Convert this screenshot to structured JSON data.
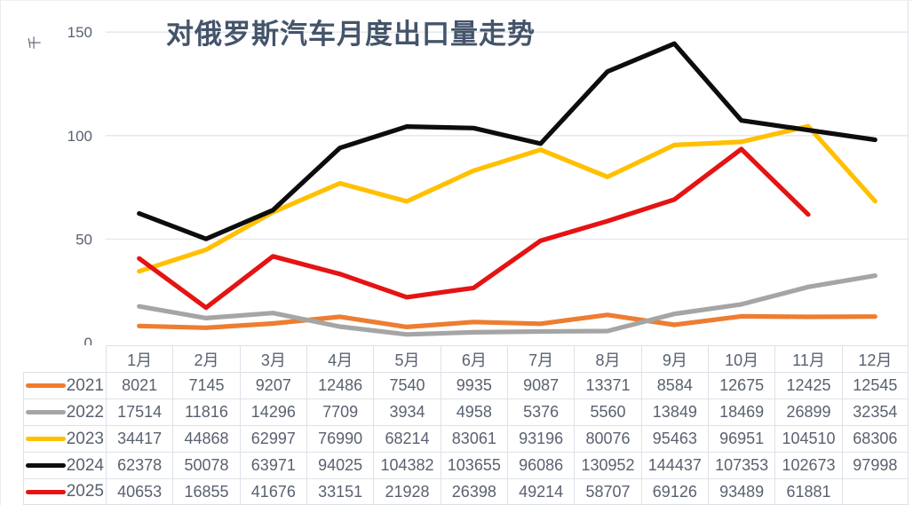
{
  "chart": {
    "title": "对俄罗斯汽车月度出口量走势",
    "y_axis_unit_label": "千",
    "y_axis_tick_labels": [
      "0",
      "50",
      "100",
      "150"
    ]
  },
  "chart_data": {
    "type": "line",
    "title": "对俄罗斯汽车月度出口量走势",
    "ylabel": "千",
    "xlabel": "",
    "categories": [
      "1月",
      "2月",
      "3月",
      "4月",
      "5月",
      "6月",
      "7月",
      "8月",
      "9月",
      "10月",
      "11月",
      "12月"
    ],
    "series": [
      {
        "name": "2021",
        "color": "#ed7d31",
        "values": [
          8021,
          7145,
          9207,
          12486,
          7540,
          9935,
          9087,
          13371,
          8584,
          12675,
          12425,
          12545
        ]
      },
      {
        "name": "2022",
        "color": "#a5a5a5",
        "values": [
          17514,
          11816,
          14296,
          7709,
          3934,
          4958,
          5376,
          5560,
          13849,
          18469,
          26899,
          32354
        ]
      },
      {
        "name": "2023",
        "color": "#ffc000",
        "values": [
          34417,
          44868,
          62997,
          76990,
          68214,
          83061,
          93196,
          80076,
          95463,
          96951,
          104510,
          68306
        ]
      },
      {
        "name": "2024",
        "color": "#0d0d0d",
        "values": [
          62378,
          50078,
          63971,
          94025,
          104382,
          103655,
          96086,
          130952,
          144437,
          107353,
          102673,
          97998
        ]
      },
      {
        "name": "2025",
        "color": "#e51313",
        "values": [
          40653,
          16855,
          41676,
          33151,
          21928,
          26398,
          49214,
          58707,
          69126,
          93489,
          61881,
          null
        ]
      }
    ],
    "ylim_raw": [
      0,
      150000
    ],
    "yticks_raw": [
      0,
      50000,
      100000,
      150000
    ],
    "ytick_display": [
      "0",
      "50",
      "100",
      "150"
    ],
    "value_display_divisor": 1000,
    "grid": "horizontal-major",
    "legend_position": "table-rows-left"
  },
  "colors": {
    "grid_line": "#e3e6ec",
    "plot_right_border": "#e0e4ea",
    "table_border": "#dde1e8",
    "text": "#596170",
    "title": "#44546a"
  }
}
